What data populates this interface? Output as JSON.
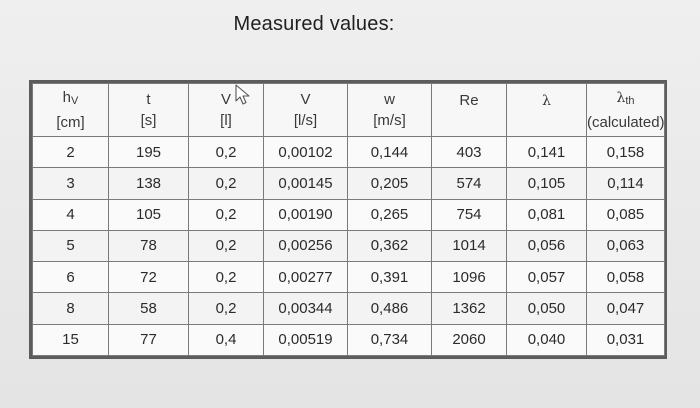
{
  "title": "Measured values:",
  "table": {
    "headers": [
      {
        "symbol": "h",
        "sub": "V",
        "unit": "[cm]"
      },
      {
        "symbol": "t",
        "sub": "",
        "unit": "[s]"
      },
      {
        "symbol": "V",
        "sub": "",
        "unit": "[l]"
      },
      {
        "symbol": "V",
        "sub": "",
        "unit": "[l/s]"
      },
      {
        "symbol": "w",
        "sub": "",
        "unit": "[m/s]"
      },
      {
        "symbol": "Re",
        "sub": "",
        "unit": ""
      },
      {
        "symbol": "λ",
        "sub": "",
        "unit": ""
      },
      {
        "symbol": "λ",
        "sub": "th",
        "unit": "(calculated)"
      }
    ],
    "rows": [
      [
        "2",
        "195",
        "0,2",
        "0,00102",
        "0,144",
        "403",
        "0,141",
        "0,158"
      ],
      [
        "3",
        "138",
        "0,2",
        "0,00145",
        "0,205",
        "574",
        "0,105",
        "0,114"
      ],
      [
        "4",
        "105",
        "0,2",
        "0,00190",
        "0,265",
        "754",
        "0,081",
        "0,085"
      ],
      [
        "5",
        "78",
        "0,2",
        "0,00256",
        "0,362",
        "1014",
        "0,056",
        "0,063"
      ],
      [
        "6",
        "72",
        "0,2",
        "0,00277",
        "0,391",
        "1096",
        "0,057",
        "0,058"
      ],
      [
        "8",
        "58",
        "0,2",
        "0,00344",
        "0,486",
        "1362",
        "0,050",
        "0,047"
      ],
      [
        "15",
        "77",
        "0,4",
        "0,00519",
        "0,734",
        "2060",
        "0,040",
        "0,031"
      ]
    ]
  },
  "icons": {
    "cursor": "mouse-pointer-icon"
  }
}
